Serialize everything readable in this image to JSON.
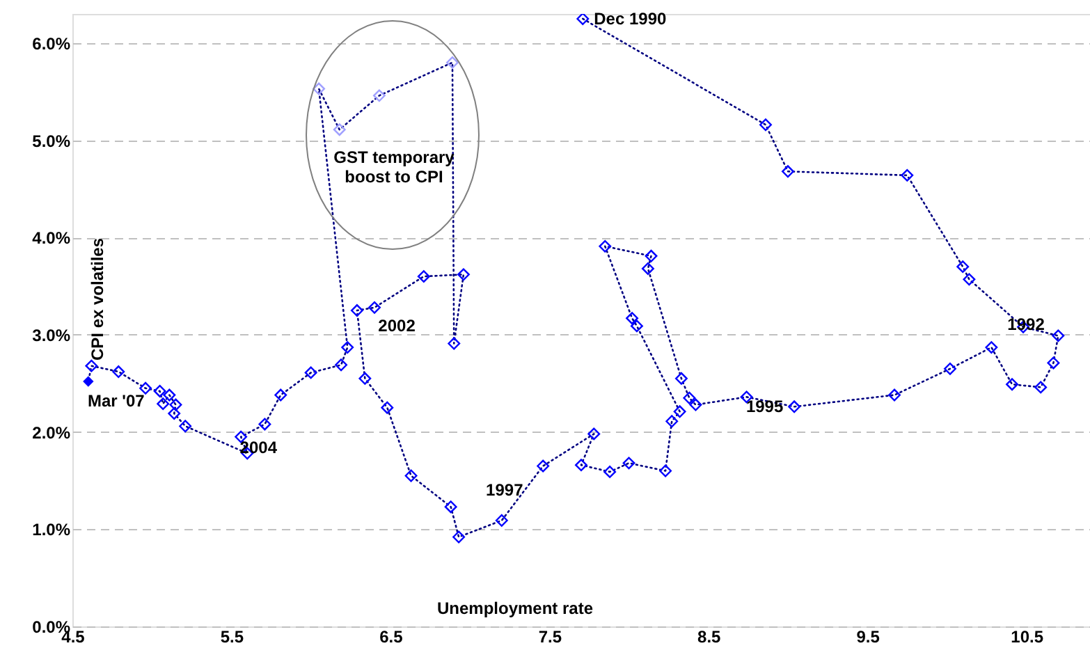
{
  "chart_data": {
    "type": "scatter",
    "xlabel": "Unemployment rate",
    "ylabel": "CPI ex volatiles",
    "xlim": [
      4.5,
      10.9
    ],
    "ylim": [
      0,
      6.3
    ],
    "xticks": [
      4.5,
      5.5,
      6.5,
      7.5,
      8.5,
      9.5,
      10.5
    ],
    "yticks": [
      {
        "value": 0,
        "label": "0.0%"
      },
      {
        "value": 1,
        "label": "1.0%"
      },
      {
        "value": 2,
        "label": "2.0%"
      },
      {
        "value": 3,
        "label": "3.0%"
      },
      {
        "value": 4,
        "label": "4.0%"
      },
      {
        "value": 5,
        "label": "5.0%"
      },
      {
        "value": 6,
        "label": "6.0%"
      }
    ],
    "grid": "y",
    "series": [
      {
        "type": "line",
        "color": "#000080",
        "line_style": "dotted",
        "marker": "none",
        "x": [
          7.71,
          8.86,
          9.0,
          9.75,
          10.1,
          10.14,
          10.48,
          10.7,
          10.67,
          10.59,
          10.41,
          10.28,
          10.02,
          9.67,
          9.04,
          8.74,
          8.42,
          8.38,
          8.33,
          8.12,
          8.14,
          7.85,
          8.02,
          8.05,
          8.32,
          8.27,
          8.23,
          8.0,
          7.88,
          7.7,
          7.78,
          7.46,
          7.2,
          6.93,
          6.88,
          6.63,
          6.48,
          6.34,
          6.29,
          6.4,
          6.71,
          6.96,
          6.9,
          6.89,
          6.43,
          6.18,
          6.05,
          6.23,
          6.19,
          6.0,
          5.81,
          5.71,
          5.56,
          5.6,
          5.21,
          5.14,
          5.15,
          5.11,
          5.07,
          5.05,
          4.96,
          4.79,
          4.62,
          4.6
        ],
        "values": [
          6.25,
          5.16,
          4.68,
          4.64,
          3.7,
          3.57,
          3.08,
          2.99,
          2.71,
          2.46,
          2.49,
          2.87,
          2.65,
          2.38,
          2.26,
          2.36,
          2.28,
          2.35,
          2.55,
          3.68,
          3.81,
          3.91,
          3.17,
          3.09,
          2.21,
          2.11,
          1.6,
          1.68,
          1.59,
          1.66,
          1.98,
          1.65,
          1.09,
          0.92,
          1.23,
          1.55,
          2.25,
          2.55,
          3.25,
          3.28,
          3.6,
          3.62,
          2.91,
          5.8,
          5.46,
          5.11,
          5.53,
          2.87,
          2.69,
          2.61,
          2.38,
          2.08,
          1.95,
          1.78,
          2.06,
          2.19,
          2.28,
          2.38,
          2.29,
          2.42,
          2.45,
          2.62,
          2.68,
          2.52
        ]
      },
      {
        "color": "#0000ff",
        "marker": "diamond",
        "x": [
          7.71,
          8.86,
          9.0,
          9.75,
          10.1,
          10.14,
          10.48,
          10.7,
          10.67,
          10.59,
          10.41,
          10.28,
          10.02,
          9.67,
          9.04,
          8.74,
          8.42,
          8.38,
          8.33,
          8.12,
          8.14,
          7.85,
          8.02,
          8.05,
          8.32,
          8.27,
          8.23,
          8.0,
          7.88,
          7.7,
          7.78,
          7.46,
          7.2,
          6.93,
          6.88,
          6.63,
          6.48,
          6.34,
          6.29,
          6.4,
          6.71,
          6.96,
          6.9,
          6.89,
          6.43,
          6.18,
          6.05,
          6.23,
          6.19,
          6.0,
          5.81,
          5.71,
          5.56,
          5.6,
          5.21,
          5.14,
          5.15,
          5.11,
          5.07,
          5.05,
          4.96,
          4.79,
          4.62
        ],
        "values": [
          6.25,
          5.16,
          4.68,
          4.64,
          3.7,
          3.57,
          3.08,
          2.99,
          2.71,
          2.46,
          2.49,
          2.87,
          2.65,
          2.38,
          2.26,
          2.36,
          2.28,
          2.35,
          2.55,
          3.68,
          3.81,
          3.91,
          3.17,
          3.09,
          2.21,
          2.11,
          1.6,
          1.68,
          1.59,
          1.66,
          1.98,
          1.65,
          1.09,
          0.92,
          1.23,
          1.55,
          2.25,
          2.55,
          3.25,
          3.28,
          3.6,
          3.62,
          2.91,
          5.8,
          5.46,
          5.11,
          5.53,
          2.87,
          2.69,
          2.61,
          2.38,
          2.08,
          1.95,
          1.78,
          2.06,
          2.19,
          2.28,
          2.38,
          2.29,
          2.42,
          2.45,
          2.62,
          2.68
        ],
        "colors": [
          "#0000ff",
          "#0000ff",
          "#0000ff",
          "#0000ff",
          "#0000ff",
          "#0000ff",
          "#0000ff",
          "#0000ff",
          "#0000ff",
          "#0000ff",
          "#0000ff",
          "#0000ff",
          "#0000ff",
          "#0000ff",
          "#0000ff",
          "#0000ff",
          "#0000ff",
          "#0000ff",
          "#0000ff",
          "#0000ff",
          "#0000ff",
          "#0000ff",
          "#0000ff",
          "#0000ff",
          "#0000ff",
          "#0000ff",
          "#0000ff",
          "#0000ff",
          "#0000ff",
          "#0000ff",
          "#0000ff",
          "#0000ff",
          "#0000ff",
          "#0000ff",
          "#0000ff",
          "#0000ff",
          "#0000ff",
          "#0000ff",
          "#0000ff",
          "#0000ff",
          "#0000ff",
          "#0000ff",
          "#0000ff",
          "#a0a0ff",
          "#a0a0ff",
          "#a0a0ff",
          "#a0a0ff",
          "#0000ff",
          "#0000ff",
          "#0000ff",
          "#0000ff",
          "#0000ff",
          "#0000ff",
          "#0000ff",
          "#0000ff",
          "#0000ff",
          "#0000ff",
          "#0000ff",
          "#0000ff",
          "#0000ff",
          "#0000ff",
          "#0000ff",
          "#0000ff"
        ]
      },
      {
        "color": "#0000ff",
        "marker": "diamond",
        "x": [
          4.6
        ],
        "values": [
          2.52
        ]
      }
    ],
    "annotations": [
      {
        "text": "Dec 1990",
        "x": 7.71,
        "y": 6.25
      },
      {
        "text": "1992",
        "x": 10.48,
        "y": 3.08
      },
      {
        "text": "1995",
        "x": 8.74,
        "y": 2.36
      },
      {
        "text": "1997",
        "x": 7.2,
        "y": 1.09
      },
      {
        "text": "2002",
        "x": 6.4,
        "y": 3.28
      },
      {
        "text": "2004",
        "x": 5.6,
        "y": 1.78
      },
      {
        "text": "Mar '07",
        "x": 4.6,
        "y": 2.52
      },
      "GST temporary\nboost to CPI"
    ]
  }
}
